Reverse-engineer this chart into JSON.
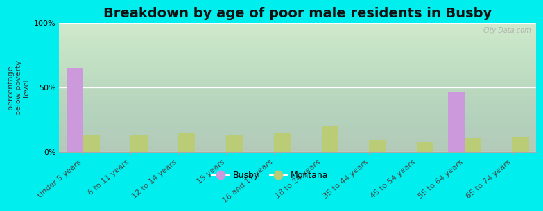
{
  "title": "Breakdown by age of poor male residents in Busby",
  "ylabel": "percentage\nbelow poverty\nlevel",
  "categories": [
    "Under 5 years",
    "6 to 11 years",
    "12 to 14 years",
    "15 years",
    "16 and 17 years",
    "18 to 24 years",
    "35 to 44 years",
    "45 to 54 years",
    "55 to 64 years",
    "65 to 74 years"
  ],
  "busby_values": [
    65,
    0,
    0,
    0,
    0,
    0,
    0,
    0,
    47,
    0
  ],
  "montana_values": [
    13,
    13,
    15,
    13,
    15,
    20,
    9,
    8,
    11,
    12
  ],
  "busby_color": "#cc99dd",
  "montana_color": "#bbcc77",
  "background_outer": "#00eeee",
  "ylim": [
    0,
    100
  ],
  "yticks": [
    0,
    50,
    100
  ],
  "ytick_labels": [
    "0%",
    "50%",
    "100%"
  ],
  "bar_width": 0.35,
  "title_fontsize": 14,
  "axis_label_fontsize": 8,
  "tick_fontsize": 8,
  "legend_labels": [
    "Busby",
    "Montana"
  ],
  "watermark": "City-Data.com"
}
